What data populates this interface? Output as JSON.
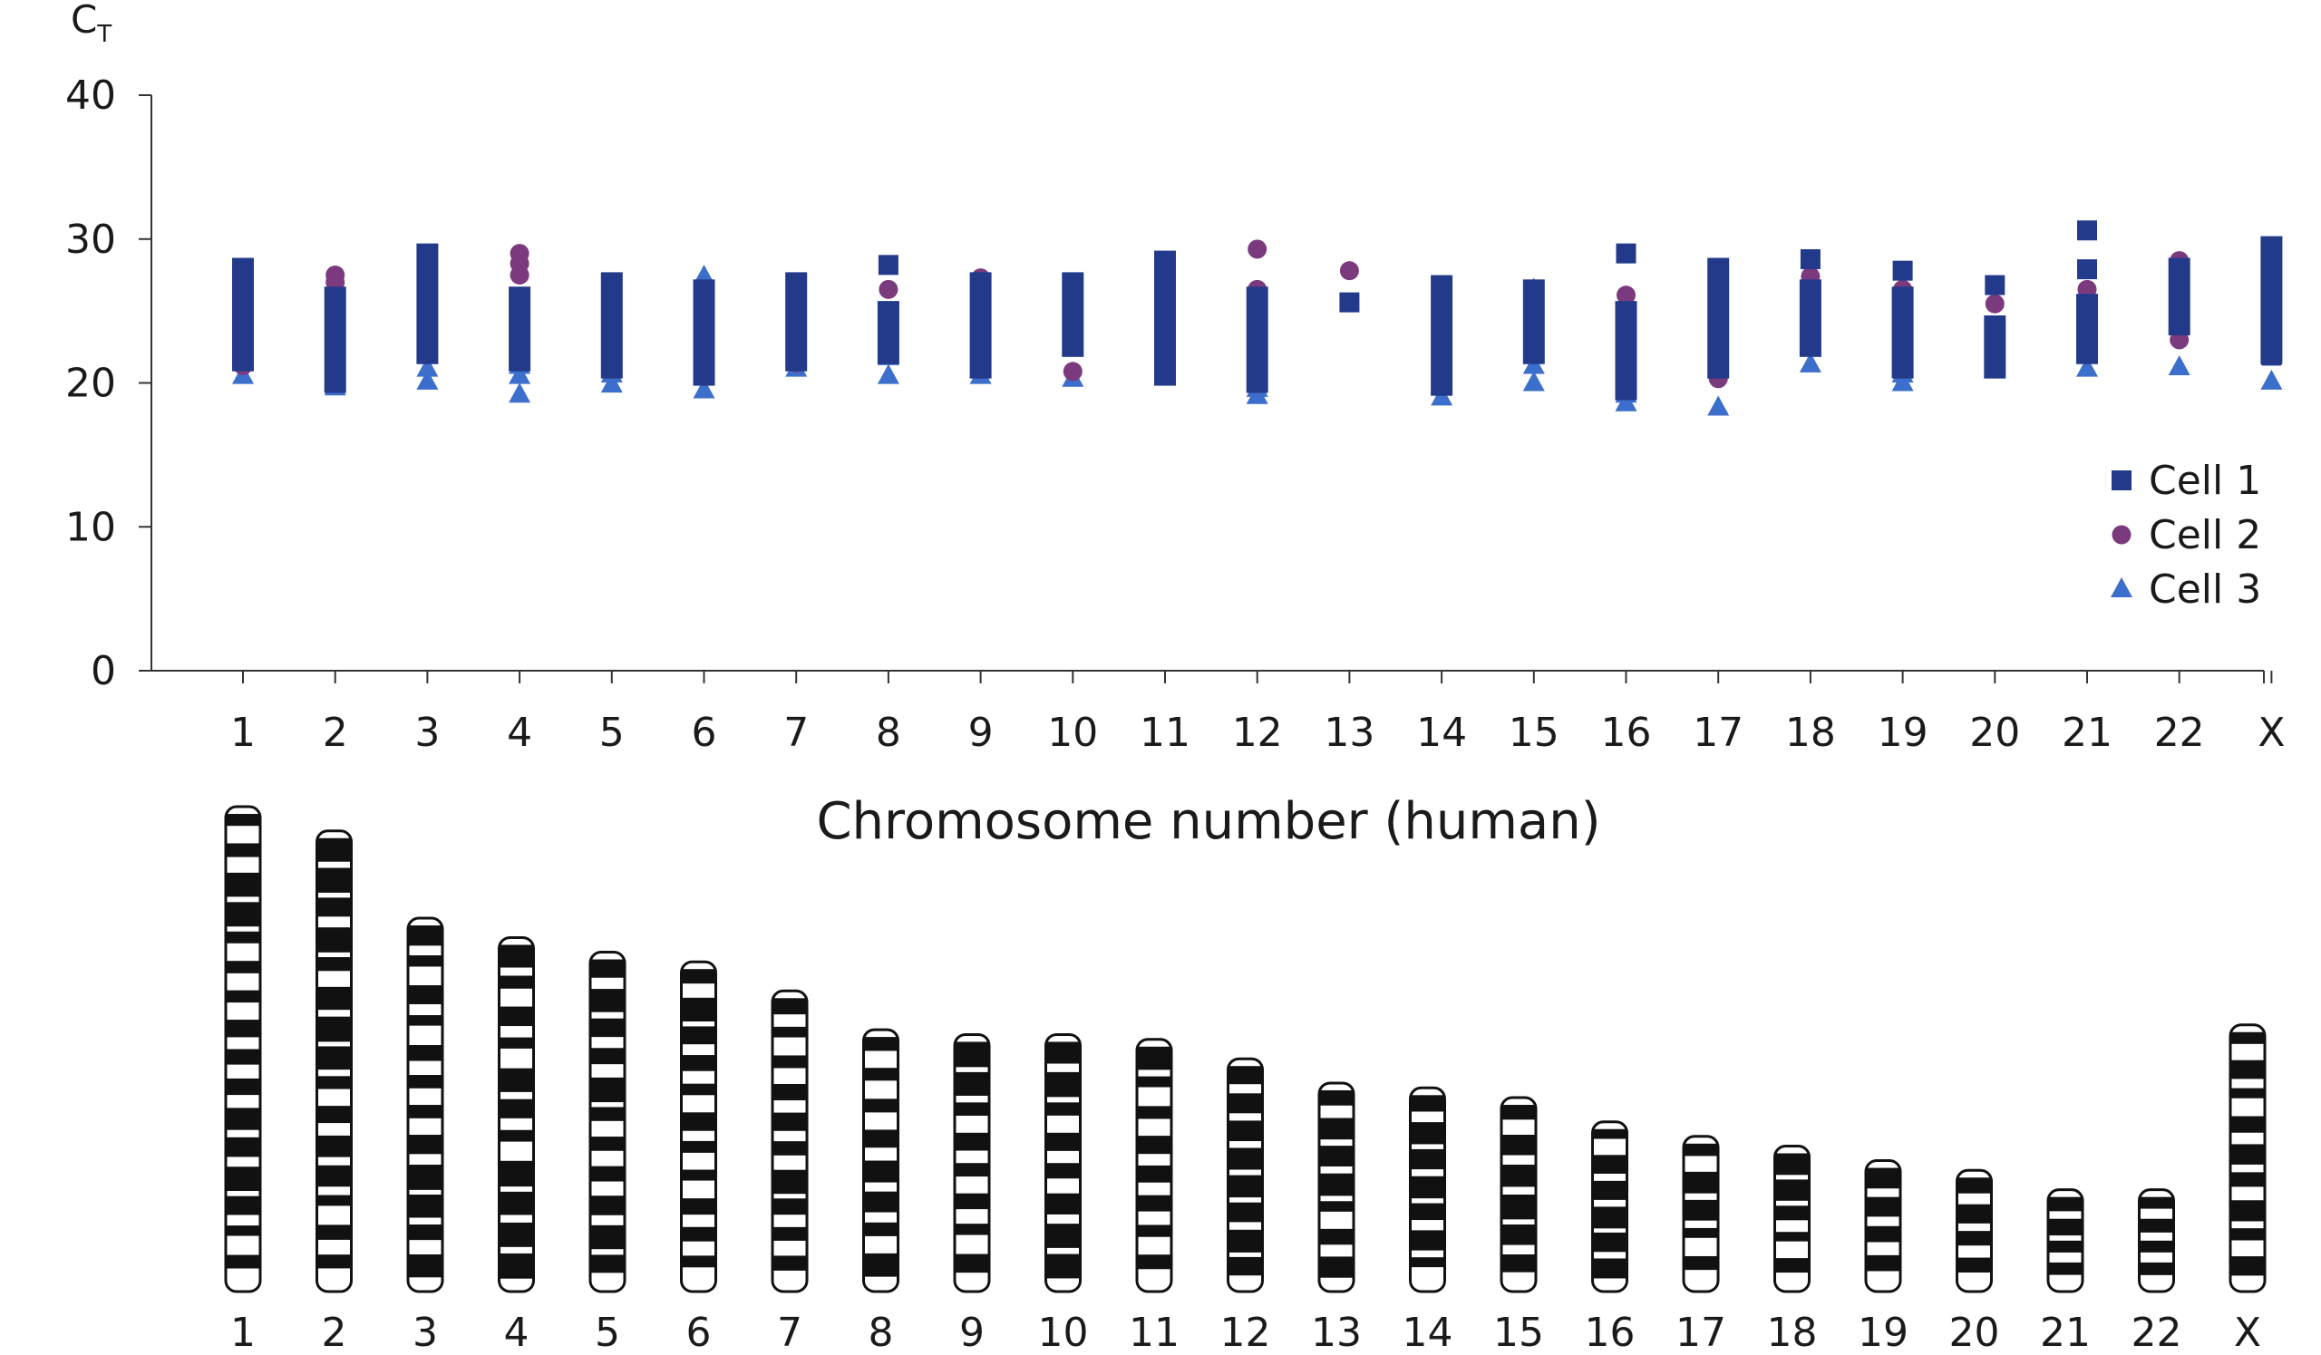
{
  "chart_data": {
    "type": "scatter",
    "ylabel_main": "C",
    "ylabel_sub": "T",
    "xlabel": "Chromosome number (human)",
    "ylim": [
      0,
      40
    ],
    "yticks": [
      0,
      10,
      20,
      30,
      40
    ],
    "categories": [
      "1",
      "2",
      "3",
      "4",
      "5",
      "6",
      "7",
      "8",
      "9",
      "10",
      "11",
      "12",
      "13",
      "14",
      "15",
      "16",
      "17",
      "18",
      "19",
      "20",
      "21",
      "22",
      "X"
    ],
    "legend_position": "right",
    "series": [
      {
        "name": "Cell 1",
        "marker": "square",
        "color": "#233a8b",
        "ranges": [
          [
            21.5,
            28.0
          ],
          [
            20.0,
            26.0
          ],
          [
            22.0,
            29.0
          ],
          [
            21.5,
            26.0
          ],
          [
            21.0,
            27.0
          ],
          [
            20.5,
            26.5
          ],
          [
            21.5,
            27.0
          ],
          [
            22.0,
            25.0
          ],
          [
            21.0,
            27.0
          ],
          [
            22.5,
            27.0
          ],
          [
            20.5,
            28.5
          ],
          [
            20.0,
            26.0
          ],
          null,
          [
            19.8,
            26.8
          ],
          [
            22.0,
            26.5
          ],
          [
            19.5,
            25.0
          ],
          [
            21.0,
            28.0
          ],
          [
            22.5,
            26.5
          ],
          [
            21.0,
            26.0
          ],
          [
            21.0,
            24.0
          ],
          [
            22.0,
            25.5
          ],
          [
            24.0,
            28.0
          ],
          [
            22.0,
            29.5
          ]
        ],
        "points": [
          [
            8,
            28.2
          ],
          [
            13,
            25.6
          ],
          [
            16,
            29.0
          ],
          [
            18,
            28.6
          ],
          [
            19,
            27.8
          ],
          [
            20,
            26.8
          ],
          [
            21,
            30.6
          ],
          [
            21,
            27.9
          ],
          [
            21,
            22.5
          ],
          [
            23,
            21.9
          ],
          [
            23,
            29.5
          ]
        ]
      },
      {
        "name": "Cell 2",
        "marker": "circle",
        "color": "#7b3a7e",
        "points": [
          [
            1,
            21.2
          ],
          [
            2,
            27.5
          ],
          [
            2,
            27.0
          ],
          [
            2,
            21.0
          ],
          [
            3,
            28.0
          ],
          [
            3,
            22.0
          ],
          [
            4,
            29.0
          ],
          [
            4,
            28.3
          ],
          [
            4,
            27.5
          ],
          [
            4,
            22.0
          ],
          [
            5,
            21.2
          ],
          [
            6,
            21.5
          ],
          [
            7,
            22.0
          ],
          [
            7,
            21.4
          ],
          [
            8,
            26.5
          ],
          [
            8,
            22.0
          ],
          [
            9,
            27.3
          ],
          [
            9,
            22.0
          ],
          [
            9,
            21.4
          ],
          [
            10,
            26.0
          ],
          [
            10,
            20.8
          ],
          [
            11,
            26.5
          ],
          [
            12,
            29.3
          ],
          [
            12,
            26.5
          ],
          [
            12,
            20.0
          ],
          [
            13,
            27.8
          ],
          [
            14,
            24.0
          ],
          [
            15,
            22.5
          ],
          [
            16,
            26.1
          ],
          [
            17,
            27.5
          ],
          [
            17,
            20.3
          ],
          [
            18,
            27.4
          ],
          [
            18,
            23.5
          ],
          [
            19,
            26.5
          ],
          [
            19,
            22.5
          ],
          [
            20,
            25.5
          ],
          [
            20,
            24.0
          ],
          [
            21,
            26.5
          ],
          [
            21,
            25.5
          ],
          [
            21,
            24.5
          ],
          [
            22,
            28.5
          ],
          [
            22,
            25.0
          ],
          [
            22,
            23.0
          ],
          [
            23,
            24.0
          ],
          [
            23,
            23.3
          ]
        ]
      },
      {
        "name": "Cell 3",
        "marker": "triangle",
        "color": "#3c6ecb",
        "points": [
          [
            1,
            20.5
          ],
          [
            2,
            19.7
          ],
          [
            2,
            20.2
          ],
          [
            3,
            20.1
          ],
          [
            3,
            21.0
          ],
          [
            4,
            19.2
          ],
          [
            4,
            20.5
          ],
          [
            4,
            21.2
          ],
          [
            5,
            19.9
          ],
          [
            5,
            20.6
          ],
          [
            6,
            27.4
          ],
          [
            6,
            19.5
          ],
          [
            7,
            21.0
          ],
          [
            8,
            20.5
          ],
          [
            8,
            21.8
          ],
          [
            9,
            20.5
          ],
          [
            9,
            21.0
          ],
          [
            10,
            20.3
          ],
          [
            11,
            20.4
          ],
          [
            12,
            19.1
          ],
          [
            12,
            19.6
          ],
          [
            14,
            19.0
          ],
          [
            15,
            26.5
          ],
          [
            15,
            20.0
          ],
          [
            15,
            21.2
          ],
          [
            16,
            18.6
          ],
          [
            16,
            19.2
          ],
          [
            17,
            18.3
          ],
          [
            18,
            21.3
          ],
          [
            19,
            20.0
          ],
          [
            19,
            20.6
          ],
          [
            21,
            21.0
          ],
          [
            22,
            21.1
          ],
          [
            23,
            20.1
          ]
        ]
      }
    ]
  },
  "karyotype": {
    "labels": [
      "1",
      "2",
      "3",
      "4",
      "5",
      "6",
      "7",
      "8",
      "9",
      "10",
      "11",
      "12",
      "13",
      "14",
      "15",
      "16",
      "17",
      "18",
      "19",
      "20",
      "21",
      "22",
      "X"
    ],
    "relative_lengths": [
      1.0,
      0.95,
      0.77,
      0.73,
      0.7,
      0.68,
      0.62,
      0.54,
      0.53,
      0.53,
      0.52,
      0.48,
      0.43,
      0.42,
      0.4,
      0.35,
      0.32,
      0.3,
      0.27,
      0.25,
      0.21,
      0.21,
      0.55
    ]
  }
}
